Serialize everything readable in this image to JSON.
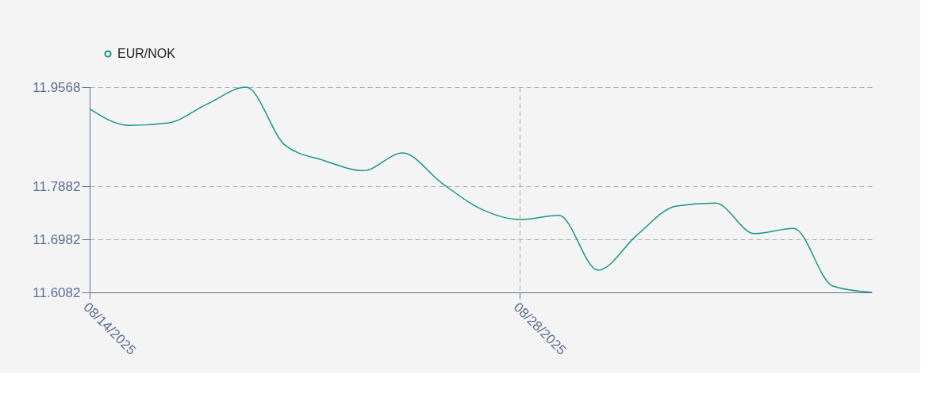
{
  "chart_data": {
    "type": "line",
    "categories": [
      "08/14/2025",
      null,
      null,
      null,
      null,
      null,
      null,
      null,
      null,
      null,
      null,
      "08/28/2025",
      null,
      null,
      null,
      null,
      null,
      null,
      null,
      null,
      null
    ],
    "series": [
      {
        "name": "EUR/NOK",
        "color": "#16968a",
        "values": [
          11.92,
          11.892,
          11.896,
          11.928,
          11.9568,
          11.858,
          11.832,
          11.815,
          11.845,
          11.794,
          11.75,
          11.732,
          11.739,
          11.646,
          11.706,
          11.755,
          11.76,
          11.708,
          11.717,
          11.619,
          11.6082
        ]
      }
    ],
    "ylim": [
      11.6082,
      11.9568
    ],
    "yticks": [
      11.6082,
      11.6982,
      11.7882,
      11.9568
    ],
    "grid": true,
    "legend": "top",
    "marker": "none",
    "line_style": "solid"
  }
}
